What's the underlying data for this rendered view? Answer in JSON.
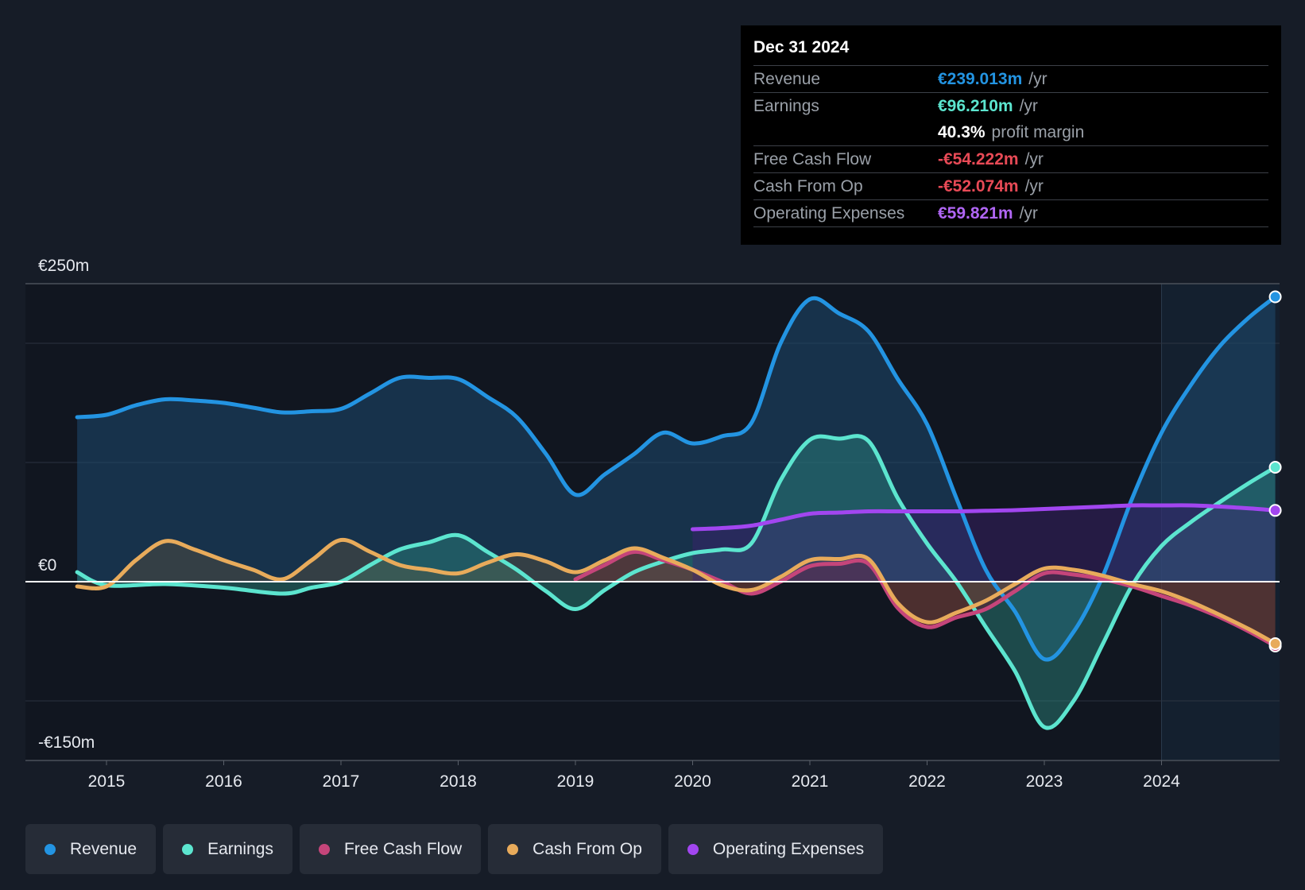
{
  "tooltip": {
    "date": "Dec 31 2024",
    "rows": {
      "revenue": {
        "label": "Revenue",
        "value": "€239.013m",
        "unit": "/yr"
      },
      "earnings": {
        "label": "Earnings",
        "value": "€96.210m",
        "unit": "/yr"
      },
      "margin": {
        "value": "40.3%",
        "text": "profit margin"
      },
      "fcf": {
        "label": "Free Cash Flow",
        "value": "-€54.222m",
        "unit": "/yr"
      },
      "cfo": {
        "label": "Cash From Op",
        "value": "-€52.074m",
        "unit": "/yr"
      },
      "opex": {
        "label": "Operating Expenses",
        "value": "€59.821m",
        "unit": "/yr"
      }
    }
  },
  "legend": [
    {
      "label": "Revenue",
      "color": "#2394e2"
    },
    {
      "label": "Earnings",
      "color": "#5ce5cf"
    },
    {
      "label": "Free Cash Flow",
      "color": "#c5457a"
    },
    {
      "label": "Cash From Op",
      "color": "#e8ab5b"
    },
    {
      "label": "Operating Expenses",
      "color": "#a246f0"
    }
  ],
  "chart_data": {
    "type": "area",
    "title": "",
    "xlabel": "",
    "ylabel": "",
    "ylim": [
      -150,
      250
    ],
    "xlim": [
      2014.3,
      2024.97
    ],
    "y_tick_labels": [
      {
        "value": 250,
        "label": "€250m"
      },
      {
        "value": 0,
        "label": "€0"
      },
      {
        "value": -150,
        "label": "-€150m"
      }
    ],
    "x_ticks": [
      2015,
      2016,
      2017,
      2018,
      2019,
      2020,
      2021,
      2022,
      2023,
      2024
    ],
    "x_tick_labels": [
      "2015",
      "2016",
      "2017",
      "2018",
      "2019",
      "2020",
      "2021",
      "2022",
      "2023",
      "2024"
    ],
    "gridlines_y": [
      250,
      200,
      100,
      0,
      -100,
      -150
    ],
    "highlight_start": 2024.0,
    "series": [
      {
        "name": "Revenue",
        "color": "#2394e2",
        "fill": "#1d4a6f",
        "x": [
          2014.75,
          2015.0,
          2015.25,
          2015.5,
          2015.75,
          2016.0,
          2016.25,
          2016.5,
          2016.75,
          2017.0,
          2017.25,
          2017.5,
          2017.75,
          2018.0,
          2018.25,
          2018.5,
          2018.75,
          2019.0,
          2019.25,
          2019.5,
          2019.75,
          2020.0,
          2020.25,
          2020.5,
          2020.75,
          2021.0,
          2021.25,
          2021.5,
          2021.75,
          2022.0,
          2022.25,
          2022.5,
          2022.75,
          2023.0,
          2023.25,
          2023.5,
          2023.75,
          2024.0,
          2024.25,
          2024.5,
          2024.75,
          2024.97
        ],
        "values": [
          138,
          140,
          148,
          153,
          152,
          150,
          146,
          142,
          143,
          145,
          158,
          171,
          171,
          170,
          155,
          138,
          107,
          73,
          90,
          107,
          125,
          116,
          122,
          133,
          200,
          237,
          225,
          210,
          170,
          132,
          70,
          10,
          -25,
          -65,
          -42,
          5,
          70,
          125,
          165,
          198,
          222,
          239
        ]
      },
      {
        "name": "Earnings",
        "color": "#5ce5cf",
        "fill": "#2c8a80",
        "x": [
          2014.75,
          2015.0,
          2015.5,
          2016.0,
          2016.5,
          2016.75,
          2017.0,
          2017.25,
          2017.5,
          2017.75,
          2018.0,
          2018.25,
          2018.5,
          2018.75,
          2019.0,
          2019.25,
          2019.5,
          2019.75,
          2020.0,
          2020.25,
          2020.5,
          2020.75,
          2021.0,
          2021.25,
          2021.5,
          2021.75,
          2022.0,
          2022.25,
          2022.5,
          2022.75,
          2023.0,
          2023.25,
          2023.5,
          2023.75,
          2024.0,
          2024.25,
          2024.5,
          2024.75,
          2024.97
        ],
        "values": [
          8,
          -3,
          -2,
          -5,
          -10,
          -5,
          0,
          14,
          27,
          33,
          39,
          25,
          10,
          -8,
          -23,
          -7,
          8,
          17,
          24,
          27,
          32,
          85,
          119,
          120,
          118,
          70,
          32,
          0,
          -38,
          -75,
          -122,
          -100,
          -52,
          -3,
          30,
          50,
          67,
          83,
          96
        ]
      },
      {
        "name": "Free Cash Flow",
        "color": "#c5457a",
        "fill": "#6a1c30",
        "x": [
          2019.0,
          2019.25,
          2019.5,
          2019.75,
          2020.0,
          2020.25,
          2020.5,
          2020.75,
          2021.0,
          2021.25,
          2021.5,
          2021.75,
          2022.0,
          2022.25,
          2022.5,
          2022.75,
          2023.0,
          2023.25,
          2023.5,
          2023.75,
          2024.0,
          2024.25,
          2024.5,
          2024.75,
          2024.97
        ],
        "values": [
          2,
          14,
          25,
          18,
          10,
          0,
          -10,
          0,
          13,
          15,
          15,
          -22,
          -38,
          -30,
          -23,
          -8,
          7,
          6,
          2,
          -4,
          -12,
          -20,
          -30,
          -42,
          -54
        ]
      },
      {
        "name": "Cash From Op",
        "color": "#e8ab5b",
        "fill": "#6b5a3c",
        "x": [
          2014.75,
          2015.0,
          2015.25,
          2015.5,
          2015.75,
          2016.0,
          2016.25,
          2016.5,
          2016.75,
          2017.0,
          2017.25,
          2017.5,
          2017.75,
          2018.0,
          2018.25,
          2018.5,
          2018.75,
          2019.0,
          2019.25,
          2019.5,
          2019.75,
          2020.0,
          2020.25,
          2020.5,
          2020.75,
          2021.0,
          2021.25,
          2021.5,
          2021.75,
          2022.0,
          2022.25,
          2022.5,
          2022.75,
          2023.0,
          2023.25,
          2023.5,
          2023.75,
          2024.0,
          2024.25,
          2024.5,
          2024.75,
          2024.97
        ],
        "values": [
          -4,
          -4,
          18,
          34,
          27,
          18,
          10,
          2,
          18,
          35,
          25,
          14,
          10,
          7,
          16,
          23,
          17,
          8,
          18,
          28,
          20,
          10,
          -3,
          -7,
          4,
          18,
          19,
          19,
          -18,
          -34,
          -26,
          -16,
          -2,
          11,
          10,
          5,
          -2,
          -8,
          -17,
          -28,
          -40,
          -52
        ]
      },
      {
        "name": "Operating Expenses",
        "color": "#a246f0",
        "fill": "#3f2270",
        "x": [
          2020.0,
          2020.25,
          2020.5,
          2020.75,
          2021.0,
          2021.25,
          2021.5,
          2021.75,
          2022.0,
          2022.25,
          2022.5,
          2022.75,
          2023.0,
          2023.25,
          2023.5,
          2023.75,
          2024.0,
          2024.25,
          2024.5,
          2024.75,
          2024.97
        ],
        "values": [
          44,
          45,
          47,
          52,
          57,
          58,
          59,
          59,
          59,
          59,
          59.5,
          60,
          61,
          62,
          63,
          64,
          64,
          64,
          63,
          61.5,
          59.8
        ]
      }
    ]
  }
}
